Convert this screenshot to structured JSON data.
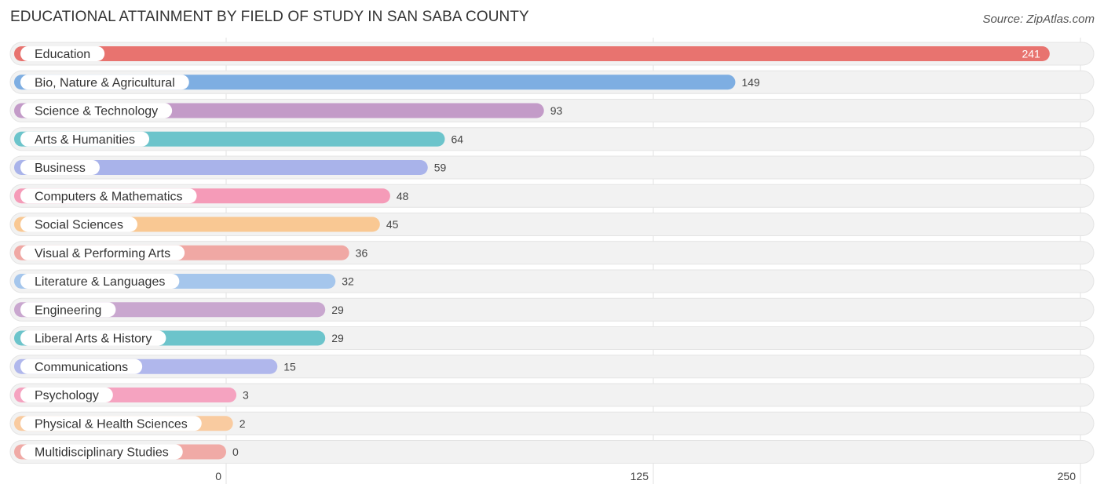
{
  "header": {
    "title": "EDUCATIONAL ATTAINMENT BY FIELD OF STUDY IN SAN SABA COUNTY",
    "source": "Source: ZipAtlas.com"
  },
  "chart_data": {
    "type": "bar",
    "orientation": "horizontal",
    "title": "EDUCATIONAL ATTAINMENT BY FIELD OF STUDY IN SAN SABA COUNTY",
    "xlabel": "",
    "ylabel": "",
    "xlim": [
      0,
      250
    ],
    "ticks": [
      0,
      125,
      250
    ],
    "grid": true,
    "categories": [
      "Education",
      "Bio, Nature & Agricultural",
      "Science & Technology",
      "Arts & Humanities",
      "Business",
      "Computers & Mathematics",
      "Social Sciences",
      "Visual & Performing Arts",
      "Literature & Languages",
      "Engineering",
      "Liberal Arts & History",
      "Communications",
      "Psychology",
      "Physical & Health Sciences",
      "Multidisciplinary Studies"
    ],
    "values": [
      241,
      149,
      93,
      64,
      59,
      48,
      45,
      36,
      32,
      29,
      29,
      15,
      3,
      2,
      0
    ],
    "colors": [
      "#e8736f",
      "#7eaee2",
      "#c39bc8",
      "#6cc4cb",
      "#a9b3ea",
      "#f59bb8",
      "#f9c893",
      "#f0a8a4",
      "#a5c6ec",
      "#c9a7cf",
      "#6cc4cb",
      "#b0b7ec",
      "#f5a3c0",
      "#f9cba0",
      "#f0aaa6"
    ]
  }
}
